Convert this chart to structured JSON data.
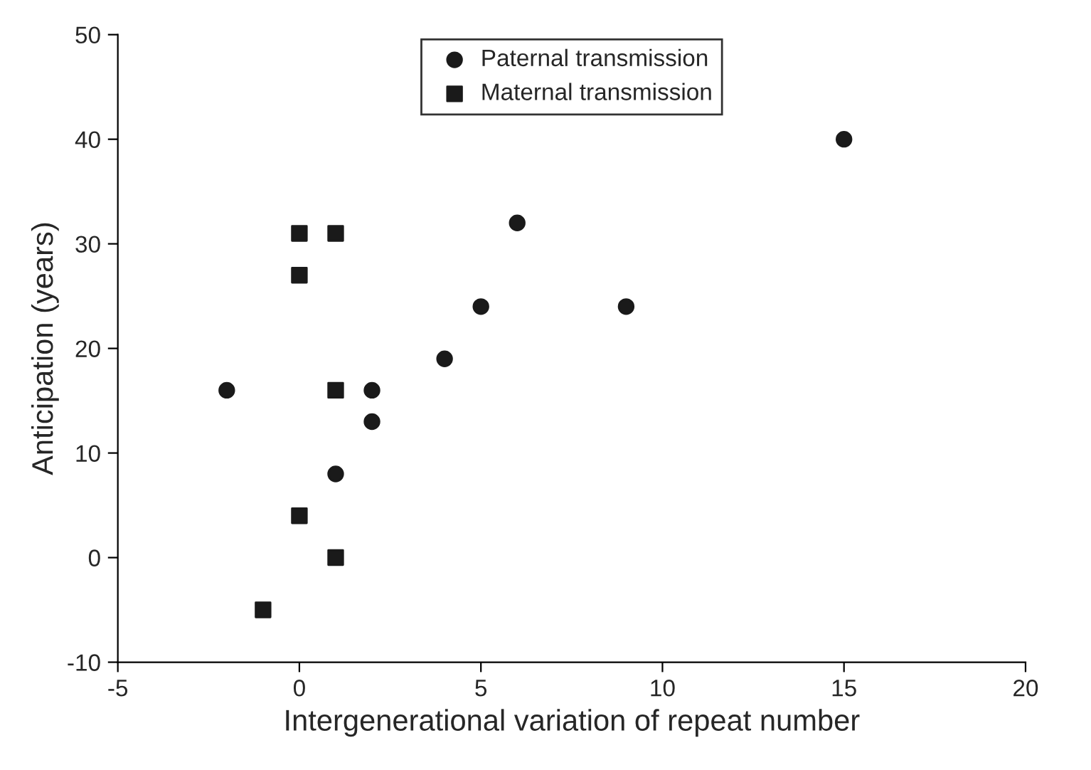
{
  "chart_data": {
    "type": "scatter",
    "xlabel": "Intergenerational variation of repeat number",
    "ylabel": "Anticipation (years)",
    "xlim": [
      -5,
      20
    ],
    "xticks": [
      -5,
      0,
      5,
      10,
      15,
      20
    ],
    "ylim": [
      -10,
      50
    ],
    "yticks": [
      -10,
      0,
      10,
      20,
      30,
      40,
      50
    ],
    "grid": false,
    "legend": "top",
    "series": [
      {
        "name": "Paternal transmission",
        "color": "#1a1a1a",
        "marker": "circle",
        "x": [
          -2,
          1,
          2,
          2,
          4,
          5,
          6,
          9,
          15
        ],
        "values": [
          16,
          8,
          16,
          13,
          19,
          24,
          32,
          24,
          40
        ]
      },
      {
        "name": "Maternal transmission",
        "color": "#1a1a1a",
        "marker": "square",
        "x": [
          -1,
          0,
          0,
          0,
          1,
          1,
          1
        ],
        "values": [
          -5,
          4,
          27,
          31,
          31,
          16,
          0
        ]
      }
    ]
  }
}
